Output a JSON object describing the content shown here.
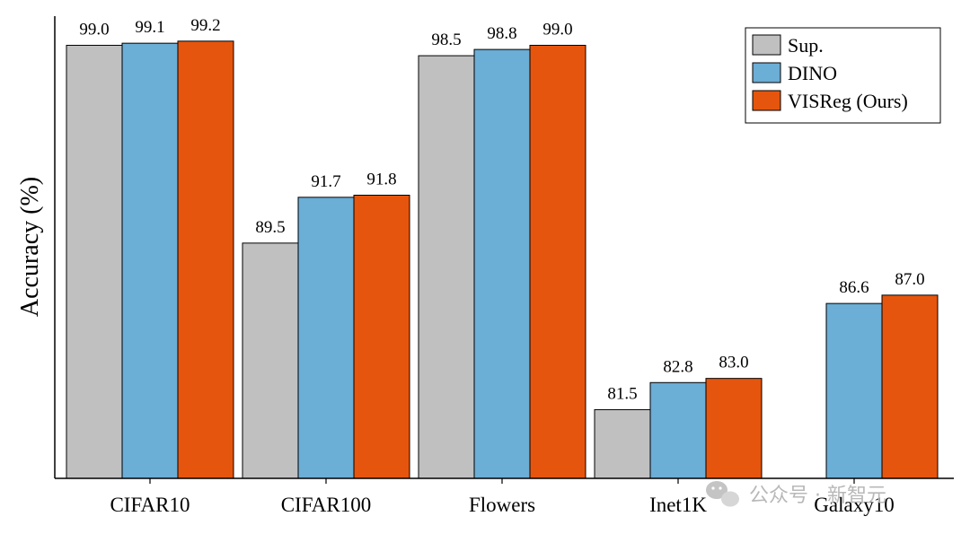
{
  "chart_data": {
    "type": "bar",
    "title": "",
    "xlabel": "",
    "ylabel": "Accuracy (%)",
    "ylim": [
      78.2,
      100.4
    ],
    "categories": [
      "CIFAR10",
      "CIFAR100",
      "Flowers",
      "Inet1K",
      "Galaxy10"
    ],
    "series": [
      {
        "name": "Sup.",
        "color": "#c0c0c0",
        "values": [
          99.0,
          89.5,
          98.5,
          81.5,
          null
        ]
      },
      {
        "name": "DINO",
        "color": "#6baed6",
        "values": [
          99.1,
          91.7,
          98.8,
          82.8,
          86.6
        ]
      },
      {
        "name": "VISReg (Ours)",
        "color": "#e6550d",
        "values": [
          99.2,
          91.8,
          99.0,
          83.0,
          87.0
        ]
      }
    ],
    "data_labels": [
      [
        "99.0",
        "99.1",
        "99.2"
      ],
      [
        "89.5",
        "91.7",
        "91.8"
      ],
      [
        "98.5",
        "98.8",
        "99.0"
      ],
      [
        "81.5",
        "82.8",
        "83.0"
      ],
      [
        "",
        "86.6",
        "87.0"
      ]
    ],
    "legend_position": "top-right",
    "grid": false
  },
  "watermark": {
    "text": "公众号 · 新智元",
    "icon": "wechat-icon"
  }
}
